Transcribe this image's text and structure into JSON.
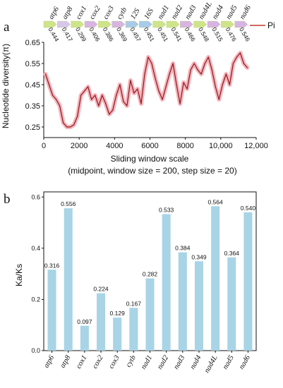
{
  "panel_a": {
    "letter": "a",
    "legend_label": "Pi",
    "ylabel": "Nucleotide diversity(π)",
    "xlabel": "Sliding window scale",
    "xlabel_sub": "(midpoint, window size = 200, step size = 20)",
    "line_color": "#8b1a1a",
    "band_color": "#f4a6b0"
  },
  "panel_b": {
    "letter": "b",
    "ylabel": "Ka/Ks",
    "bar_color": "#a8d4e6"
  },
  "chart_data": [
    {
      "type": "line",
      "title": "",
      "xlabel": "Sliding window scale",
      "ylabel": "Nucleotide diversity(π)",
      "xlim": [
        0,
        12000
      ],
      "ylim": [
        0.2,
        0.65
      ],
      "xticks": [
        "0",
        "2000",
        "4000",
        "6000",
        "8000",
        "10,000",
        "12,000"
      ],
      "xtick_values": [
        0,
        2000,
        4000,
        6000,
        8000,
        10000,
        12000
      ],
      "yticks": [
        "0.25",
        "0.35",
        "0.45",
        "0.55",
        "0.65"
      ],
      "ytick_values": [
        0.25,
        0.35,
        0.45,
        0.55,
        0.65
      ],
      "legend": "top-right",
      "series": [
        {
          "name": "Pi",
          "x": [
            100,
            300,
            500,
            700,
            900,
            1100,
            1300,
            1500,
            1700,
            1900,
            2100,
            2300,
            2500,
            2700,
            2900,
            3100,
            3300,
            3500,
            3700,
            3900,
            4100,
            4300,
            4500,
            4700,
            4900,
            5100,
            5300,
            5500,
            5700,
            5900,
            6100,
            6300,
            6500,
            6700,
            6900,
            7100,
            7300,
            7500,
            7700,
            7900,
            8100,
            8300,
            8500,
            8700,
            8900,
            9100,
            9300,
            9500,
            9700,
            9900,
            10100,
            10300,
            10500,
            10700,
            10900,
            11100,
            11300,
            11500
          ],
          "y": [
            0.5,
            0.45,
            0.4,
            0.38,
            0.35,
            0.27,
            0.25,
            0.25,
            0.26,
            0.3,
            0.4,
            0.42,
            0.44,
            0.38,
            0.4,
            0.35,
            0.4,
            0.36,
            0.31,
            0.33,
            0.4,
            0.45,
            0.37,
            0.35,
            0.47,
            0.41,
            0.43,
            0.36,
            0.5,
            0.58,
            0.55,
            0.48,
            0.42,
            0.38,
            0.44,
            0.5,
            0.55,
            0.45,
            0.36,
            0.46,
            0.43,
            0.52,
            0.55,
            0.52,
            0.5,
            0.55,
            0.58,
            0.52,
            0.44,
            0.38,
            0.45,
            0.5,
            0.45,
            0.55,
            0.58,
            0.6,
            0.55,
            0.53
          ]
        }
      ],
      "genes": [
        {
          "name": "atp6",
          "pi": "0.444",
          "color": "#cfe48a"
        },
        {
          "name": "atp8",
          "pi": "0.417",
          "color": "#d8c7e8"
        },
        {
          "name": "cox1",
          "pi": "0.299",
          "color": "#cfe48a"
        },
        {
          "name": "cox2",
          "pi": "0.406",
          "color": "#d8b4e2"
        },
        {
          "name": "cox3",
          "pi": "0.386",
          "color": "#cfe48a"
        },
        {
          "name": "cytb",
          "pi": "0.369",
          "color": "#d8b4e2"
        },
        {
          "name": "12S",
          "pi": "0.457",
          "color": "#a8cbe8"
        },
        {
          "name": "16S",
          "pi": "0.451",
          "color": "#a8cbe8"
        },
        {
          "name": "nad1",
          "pi": "0.451",
          "color": "#cfe48a"
        },
        {
          "name": "nad2",
          "pi": "0.541",
          "color": "#cfe48a"
        },
        {
          "name": "nad3",
          "pi": "0.466",
          "color": "#d8b4e2"
        },
        {
          "name": "nad4L",
          "pi": "0.548",
          "color": "#cfe48a"
        },
        {
          "name": "nad4",
          "pi": "0.515",
          "color": "#d8b4e2"
        },
        {
          "name": "nad5",
          "pi": "0.476",
          "color": "#cfe48a"
        },
        {
          "name": "nad6",
          "pi": "0.546",
          "color": "#d8b4e2"
        }
      ]
    },
    {
      "type": "bar",
      "title": "",
      "xlabel": "",
      "ylabel": "Ka/Ks",
      "ylim": [
        0,
        0.62
      ],
      "yticks": [
        "0.0",
        "0.2",
        "0.4",
        "0.6"
      ],
      "ytick_values": [
        0.0,
        0.2,
        0.4,
        0.6
      ],
      "categories": [
        "atp6",
        "atp8",
        "cox1",
        "cox2",
        "cox3",
        "cytb",
        "nad1",
        "nad2",
        "nad3",
        "nad4",
        "nad4L",
        "nad5",
        "nad6"
      ],
      "values": [
        0.316,
        0.556,
        0.097,
        0.224,
        0.129,
        0.167,
        0.282,
        0.533,
        0.384,
        0.349,
        0.564,
        0.364,
        0.54
      ],
      "value_labels": [
        "0.316",
        "0.556",
        "0.097",
        "0.224",
        "0.129",
        "0.167",
        "0.282",
        "0.533",
        "0.384",
        "0.349",
        "0.564",
        "0.364",
        "0.540"
      ]
    }
  ]
}
